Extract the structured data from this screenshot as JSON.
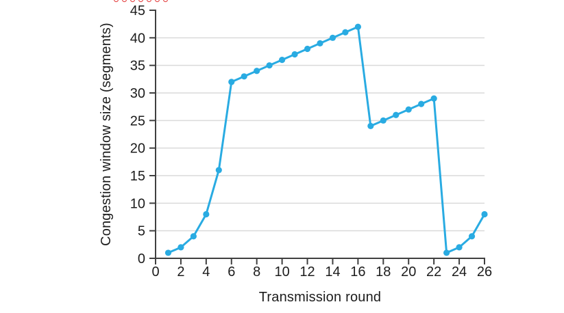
{
  "figure": {
    "background": "#ffffff",
    "top_decoration": {
      "description": "row of red rings cropped at the top edge of the image",
      "ring_count": 7,
      "color": "#e23434",
      "start_x": 169,
      "spacing": 12
    }
  },
  "chart_data": {
    "type": "line",
    "title": "",
    "xlabel": "Transmission round",
    "ylabel": "Congestion window size (segments)",
    "series_name": "congestion-window",
    "x": [
      1,
      2,
      3,
      4,
      5,
      6,
      7,
      8,
      9,
      10,
      11,
      12,
      13,
      14,
      15,
      16,
      17,
      18,
      19,
      20,
      21,
      22,
      23,
      24,
      25,
      26
    ],
    "values": [
      1,
      2,
      4,
      8,
      16,
      32,
      33,
      34,
      35,
      36,
      37,
      38,
      39,
      40,
      41,
      42,
      24,
      25,
      26,
      27,
      28,
      29,
      1,
      2,
      4,
      8
    ],
    "xlim": [
      0,
      26
    ],
    "ylim": [
      0,
      45
    ],
    "x_ticks": [
      0,
      2,
      4,
      6,
      8,
      10,
      12,
      14,
      16,
      18,
      20,
      22,
      24,
      26
    ],
    "y_ticks": [
      0,
      5,
      10,
      15,
      20,
      25,
      30,
      35,
      40,
      45
    ],
    "grid": "horizontal-only",
    "gridline_values": [
      5,
      10,
      15,
      20,
      25,
      30,
      35,
      40
    ],
    "legend": "none",
    "line_color": "#29abe2",
    "marker": "filled-circle",
    "marker_color": "#29abe2",
    "axis_color": "#3f3f3f",
    "gridline_color": "#dadada",
    "label_color": "#1c1c1c"
  }
}
